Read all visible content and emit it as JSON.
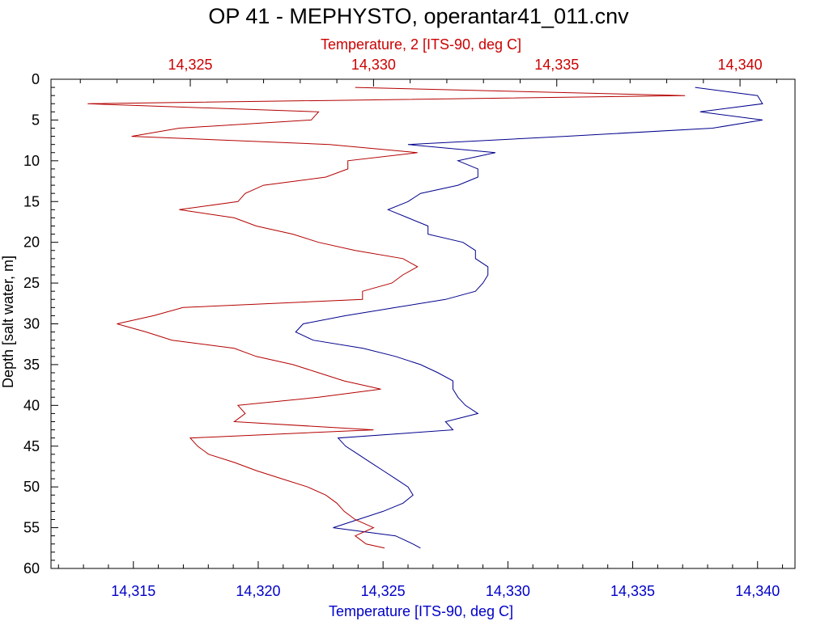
{
  "chart_data": {
    "type": "line",
    "title": "OP 41 - MEPHYSTO, operantar41_011.cnv",
    "ylabel": "Depth [salt water, m]",
    "ylim": [
      0,
      60
    ],
    "y_inverted": true,
    "y_ticks": [
      "0",
      "5",
      "10",
      "15",
      "20",
      "25",
      "30",
      "35",
      "40",
      "45",
      "50",
      "55",
      "60"
    ],
    "grid": false,
    "x_bottom": {
      "label": "Temperature [ITS-90, deg C]",
      "range": [
        14.3117,
        14.3415
      ],
      "ticks": [
        14.315,
        14.32,
        14.325,
        14.33,
        14.335,
        14.34
      ],
      "tick_labels": [
        "14,315",
        "14,320",
        "14,325",
        "14,330",
        "14,335",
        "14,340"
      ],
      "color": "#0000c8"
    },
    "x_top": {
      "label": "Temperature, 2 [ITS-90, deg C]",
      "range": [
        14.3212,
        14.3415
      ],
      "ticks": [
        14.325,
        14.33,
        14.335,
        14.34
      ],
      "tick_labels": [
        "14,325",
        "14,330",
        "14,335",
        "14,340"
      ],
      "color": "#cc0000"
    },
    "series": [
      {
        "axis": "bottom",
        "color": "#00008c",
        "depth": [
          1,
          2,
          3,
          4,
          5,
          6,
          7,
          8,
          9,
          10,
          11,
          12,
          13,
          14,
          15,
          16,
          17,
          18,
          19,
          20,
          21,
          22,
          23,
          24,
          25,
          26,
          27,
          28,
          29,
          30,
          31,
          32,
          33,
          34,
          35,
          36,
          37,
          38,
          39,
          40,
          41,
          42,
          43,
          44,
          45,
          46,
          47,
          48,
          49,
          50,
          51,
          52,
          53,
          54,
          55,
          56,
          57,
          57.5
        ],
        "values": [
          14.3375,
          14.34,
          14.3402,
          14.3377,
          14.3402,
          14.3382,
          14.3323,
          14.326,
          14.3295,
          14.328,
          14.3288,
          14.3288,
          14.328,
          14.3265,
          14.326,
          14.3252,
          14.326,
          14.3268,
          14.3268,
          14.3282,
          14.3287,
          14.3287,
          14.3292,
          14.3292,
          14.329,
          14.3287,
          14.3275,
          14.3255,
          14.3235,
          14.3218,
          14.3215,
          14.3222,
          14.3242,
          14.3255,
          14.3265,
          14.3272,
          14.3278,
          14.3278,
          14.328,
          14.3283,
          14.3288,
          14.3275,
          14.3278,
          14.3232,
          14.3235,
          14.324,
          14.3245,
          14.325,
          14.3255,
          14.326,
          14.3262,
          14.3258,
          14.325,
          14.324,
          14.323,
          14.3255,
          14.3262,
          14.3265
        ]
      },
      {
        "axis": "top",
        "color": "#b40000",
        "depth": [
          1,
          2,
          3,
          4,
          5,
          6,
          7,
          8,
          9,
          10,
          11,
          12,
          13,
          14,
          15,
          16,
          17,
          18,
          19,
          20,
          21,
          22,
          23,
          24,
          25,
          26,
          27,
          28,
          29,
          30,
          31,
          32,
          33,
          34,
          35,
          36,
          37,
          38,
          39,
          40,
          41,
          42,
          43,
          44,
          45,
          46,
          47,
          48,
          49,
          50,
          51,
          52,
          53,
          54,
          55,
          56,
          57,
          57.5
        ],
        "values": [
          14.3295,
          14.3385,
          14.3222,
          14.3285,
          14.3283,
          14.3247,
          14.3234,
          14.3288,
          14.3312,
          14.3293,
          14.3293,
          14.3287,
          14.327,
          14.3265,
          14.3263,
          14.3247,
          14.3262,
          14.3268,
          14.3278,
          14.3285,
          14.3295,
          14.3308,
          14.3312,
          14.3308,
          14.3305,
          14.3297,
          14.3297,
          14.3248,
          14.324,
          14.323,
          14.3238,
          14.3245,
          14.3262,
          14.3268,
          14.3278,
          14.3285,
          14.3292,
          14.3302,
          14.3285,
          14.3263,
          14.3265,
          14.3262,
          14.33,
          14.325,
          14.3252,
          14.3255,
          14.3262,
          14.3268,
          14.3275,
          14.3282,
          14.3287,
          14.329,
          14.3292,
          14.3295,
          14.33,
          14.3295,
          14.3298,
          14.3303
        ]
      }
    ]
  }
}
